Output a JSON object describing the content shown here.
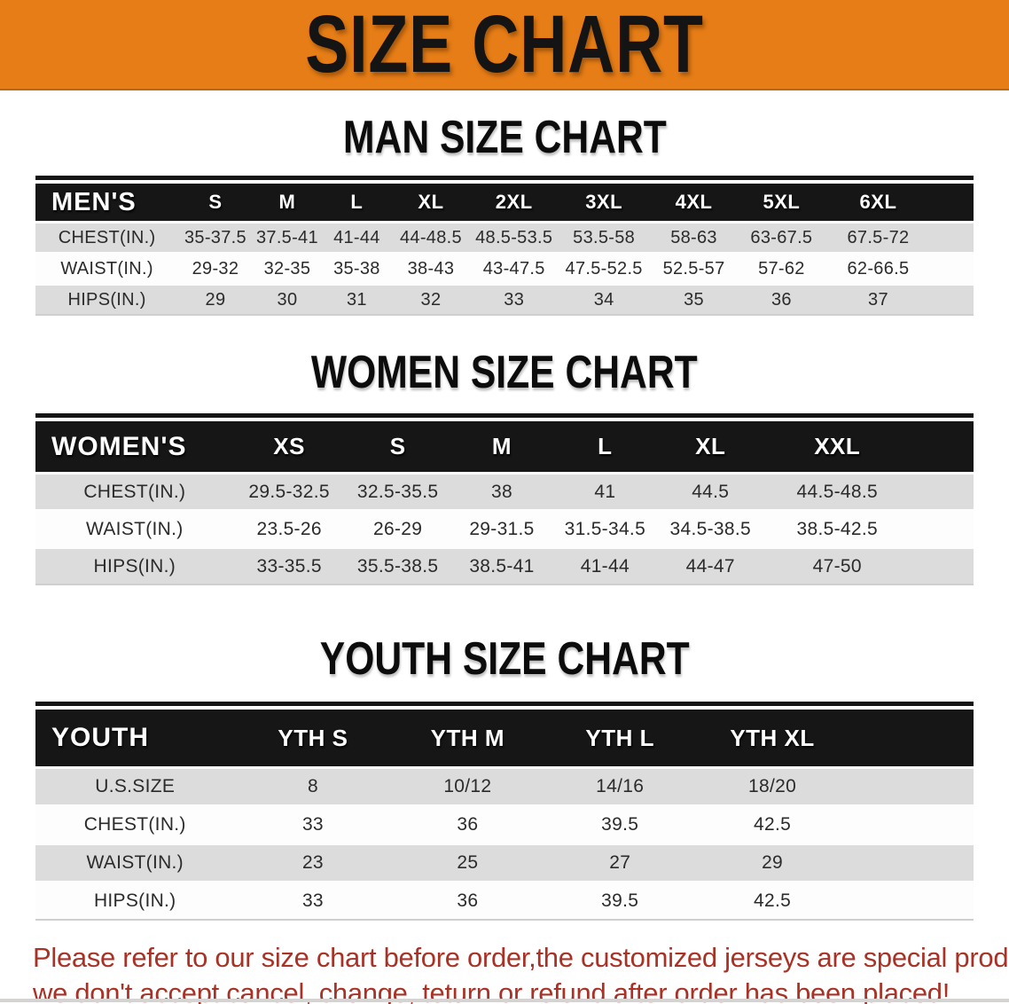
{
  "banner": {
    "title": "SIZE CHART"
  },
  "colors": {
    "banner_bg": "#E67D16",
    "header_bar": "#161616",
    "row_alt_gray": "#DCDCDC",
    "footer_red": "#A93226"
  },
  "sections": {
    "men": {
      "heading": "MAN SIZE CHART",
      "corner_label": "MEN'S",
      "columns": [
        "S",
        "M",
        "L",
        "XL",
        "2XL",
        "3XL",
        "4XL",
        "5XL",
        "6XL"
      ],
      "rows": [
        {
          "label": "CHEST(IN.)",
          "values": [
            "35-37.5",
            "37.5-41",
            "41-44",
            "44-48.5",
            "48.5-53.5",
            "53.5-58",
            "58-63",
            "63-67.5",
            "67.5-72"
          ]
        },
        {
          "label": "WAIST(IN.)",
          "values": [
            "29-32",
            "32-35",
            "35-38",
            "38-43",
            "43-47.5",
            "47.5-52.5",
            "52.5-57",
            "57-62",
            "62-66.5"
          ]
        },
        {
          "label": "HIPS(IN.)",
          "values": [
            "29",
            "30",
            "31",
            "32",
            "33",
            "34",
            "35",
            "36",
            "37"
          ]
        }
      ]
    },
    "women": {
      "heading": "WOMEN SIZE CHART",
      "corner_label": "WOMEN'S",
      "columns": [
        "XS",
        "S",
        "M",
        "L",
        "XL",
        "XXL"
      ],
      "rows": [
        {
          "label": "CHEST(IN.)",
          "values": [
            "29.5-32.5",
            "32.5-35.5",
            "38",
            "41",
            "44.5",
            "44.5-48.5"
          ]
        },
        {
          "label": "WAIST(IN.)",
          "values": [
            "23.5-26",
            "26-29",
            "29-31.5",
            "31.5-34.5",
            "34.5-38.5",
            "38.5-42.5"
          ]
        },
        {
          "label": "HIPS(IN.)",
          "values": [
            "33-35.5",
            "35.5-38.5",
            "38.5-41",
            "41-44",
            "44-47",
            "47-50"
          ]
        }
      ]
    },
    "youth": {
      "heading": "YOUTH SIZE CHART",
      "corner_label": "YOUTH",
      "columns": [
        "YTH S",
        "YTH M",
        "YTH L",
        "YTH XL"
      ],
      "rows": [
        {
          "label": "U.S.SIZE",
          "values": [
            "8",
            "10/12",
            "14/16",
            "18/20"
          ]
        },
        {
          "label": "CHEST(IN.)",
          "values": [
            "33",
            "36",
            "39.5",
            "42.5"
          ]
        },
        {
          "label": "WAIST(IN.)",
          "values": [
            "23",
            "25",
            "27",
            "29"
          ]
        },
        {
          "label": "HIPS(IN.)",
          "values": [
            "33",
            "36",
            "39.5",
            "42.5"
          ]
        }
      ]
    }
  },
  "footer": {
    "line1": "Please refer to our size chart before order,the customized jerseys are special products,",
    "line2": "we don't accept cancel, change, teturn or refund after order has been placed!"
  }
}
